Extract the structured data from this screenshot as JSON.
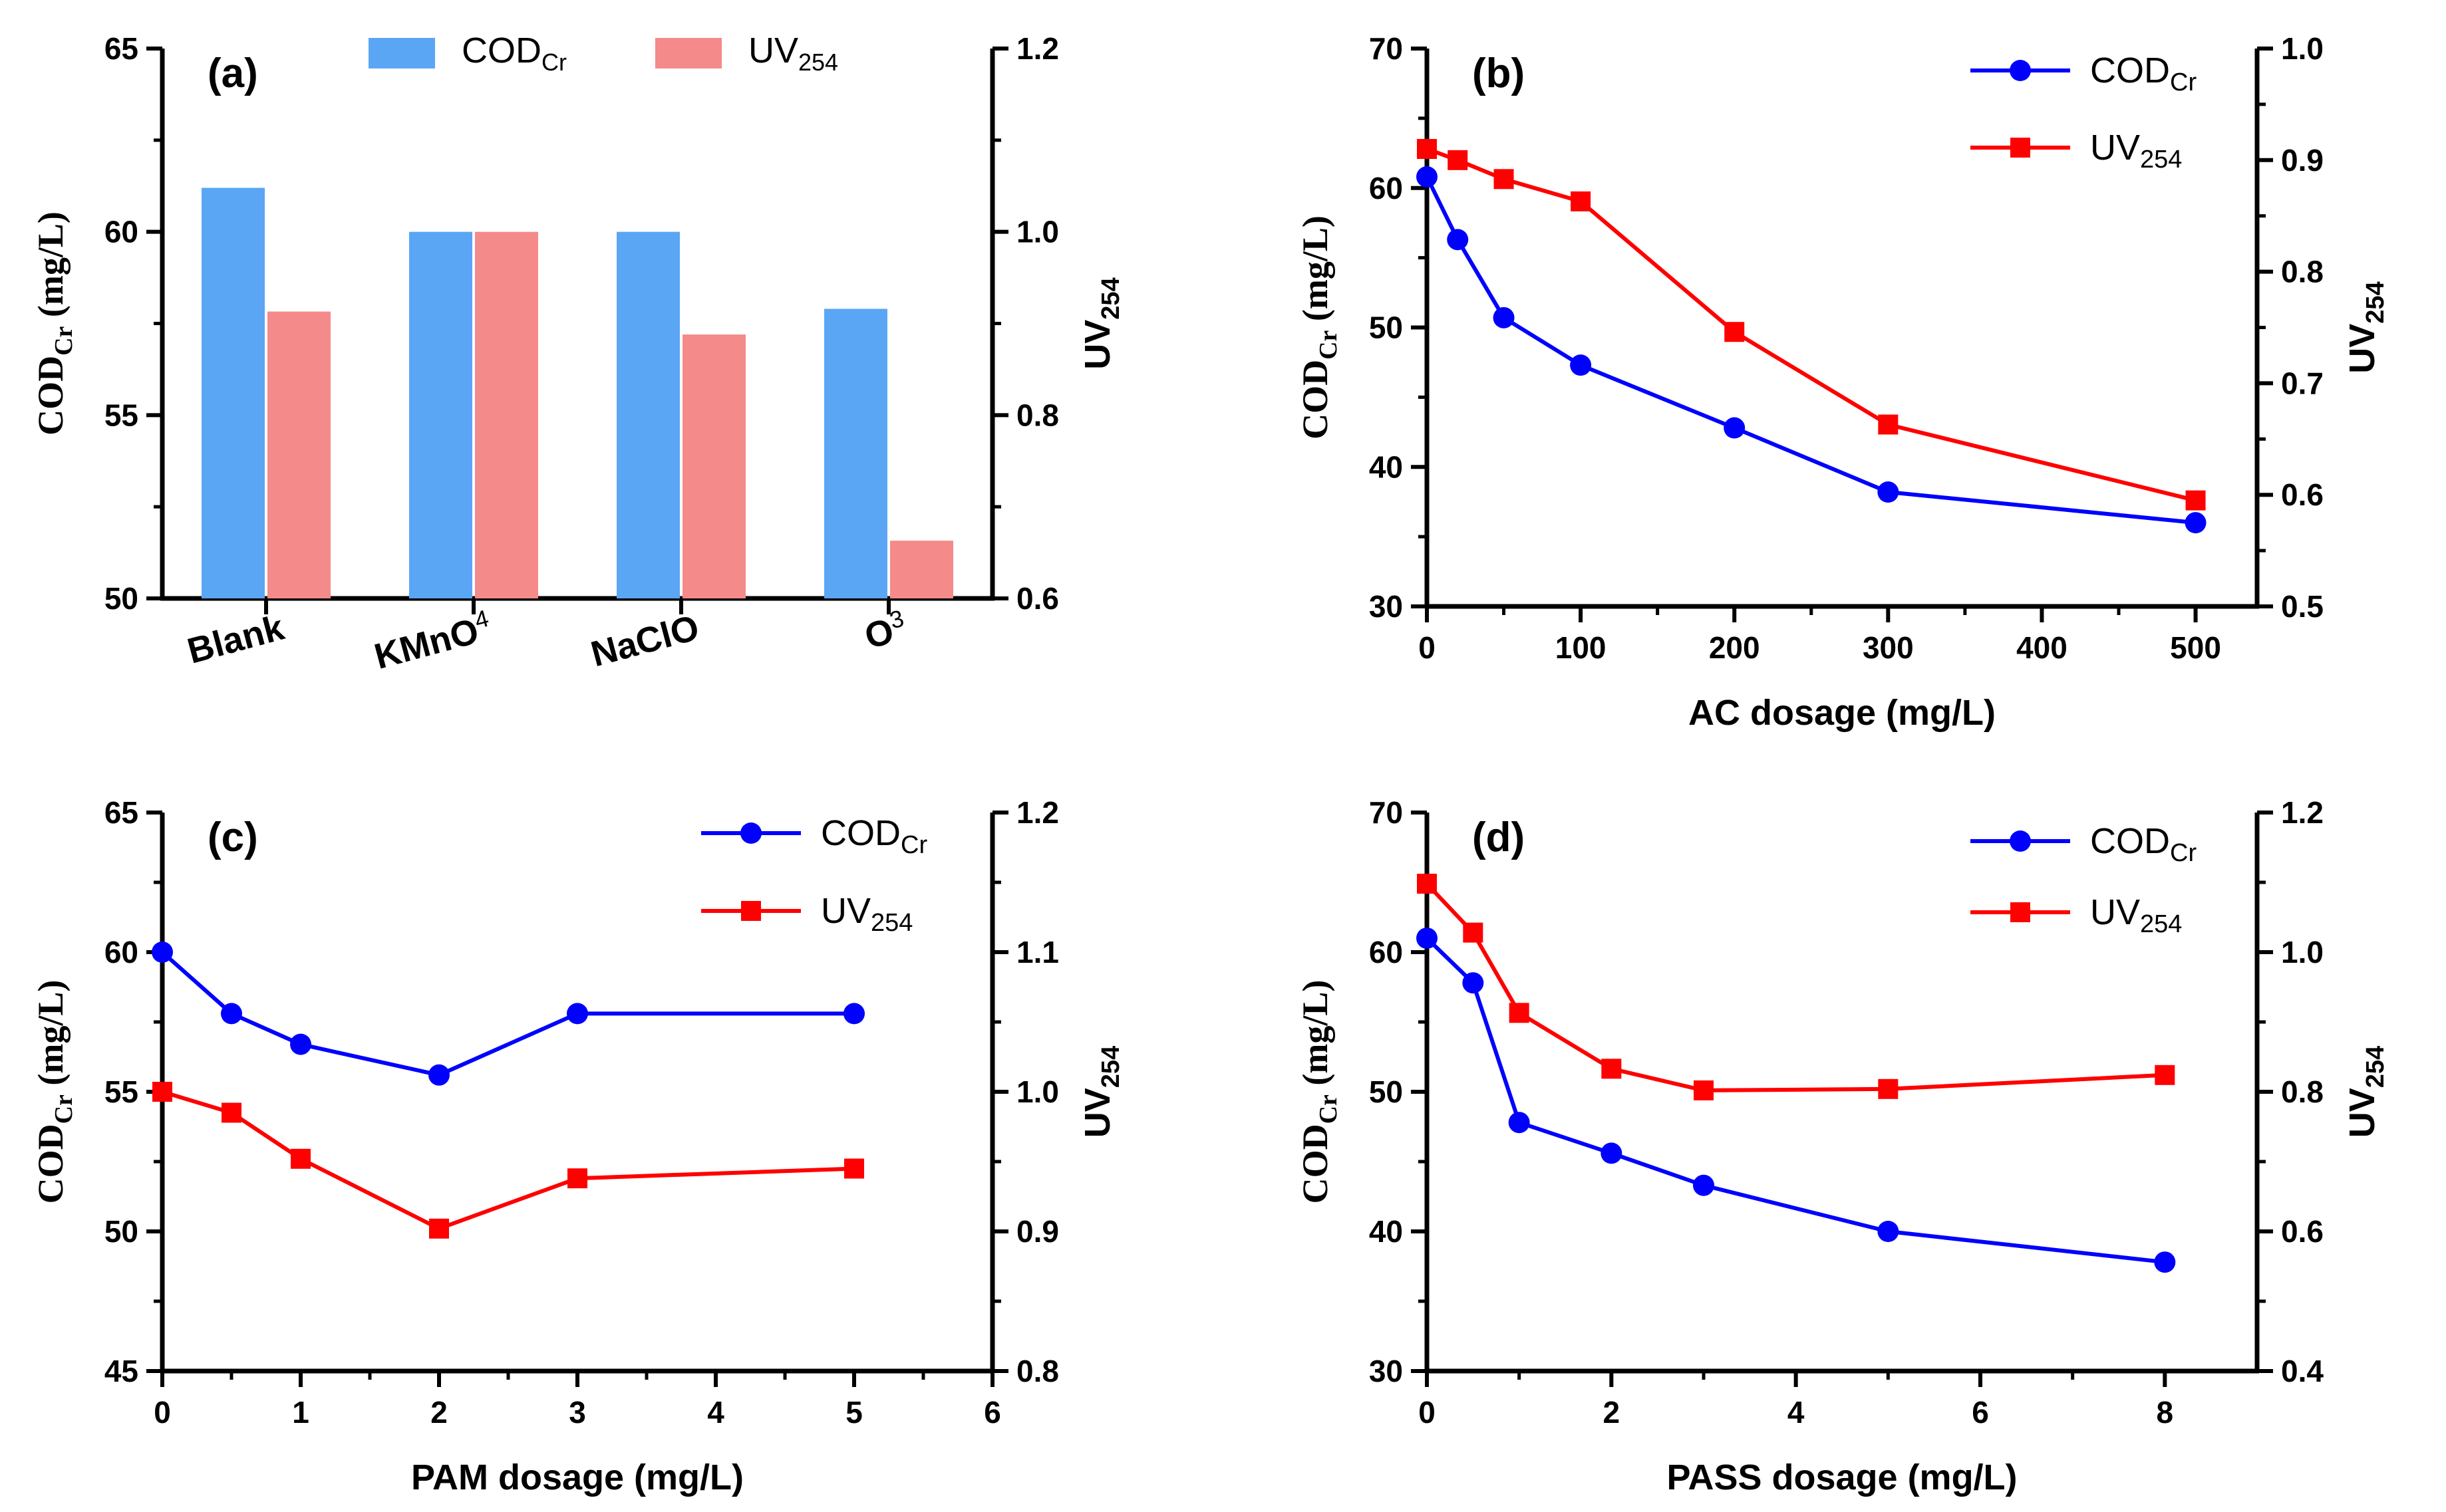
{
  "chart_data": [
    {
      "panel": "(a)",
      "type": "bar",
      "categories": [
        "Blank",
        "KMnO4",
        "NaClO",
        "O3"
      ],
      "category_labels": [
        {
          "base": "Blank",
          "sup": ""
        },
        {
          "base": "KMnO",
          "sup": "4"
        },
        {
          "base": "NaClO",
          "sup": ""
        },
        {
          "base": "O",
          "sup": "3"
        }
      ],
      "series": [
        {
          "name": "CODCr",
          "axis": "left",
          "color": "#5aa6f5",
          "values": [
            61.2,
            60.0,
            60.0,
            57.9
          ]
        },
        {
          "name": "UV254",
          "axis": "right",
          "color": "#f58a8a",
          "values": [
            0.913,
            1.0,
            0.888,
            0.663
          ]
        }
      ],
      "ylabel": {
        "base": "COD",
        "sub": "Cr",
        "unit": "  (mg/L)"
      },
      "y2label": {
        "base": "UV",
        "sub": "254"
      },
      "ylim": [
        50,
        65
      ],
      "yticks": [
        50,
        55,
        60,
        65
      ],
      "y2lim": [
        0.6,
        1.2
      ],
      "y2ticks": [
        "0.6",
        "0.8",
        "1.0",
        "1.2"
      ],
      "legend": [
        {
          "base": "COD",
          "sub": "Cr"
        },
        {
          "base": "UV",
          "sub": "254"
        }
      ]
    },
    {
      "panel": "(b)",
      "type": "line",
      "x": [
        0,
        20,
        50,
        100,
        200,
        300,
        500
      ],
      "series": [
        {
          "name": "CODCr",
          "axis": "left",
          "color": "#0000ff",
          "marker": "circle",
          "values": [
            60.8,
            56.3,
            50.7,
            47.3,
            42.8,
            38.2,
            36.0
          ]
        },
        {
          "name": "UV254",
          "axis": "right",
          "color": "#ff0000",
          "marker": "square",
          "values": [
            0.91,
            0.9,
            0.883,
            0.863,
            0.746,
            0.663,
            0.595
          ]
        }
      ],
      "xlabel": "AC dosage (mg/L)",
      "xlim": [
        0,
        540
      ],
      "xticks": [
        "0",
        "100",
        "200",
        "300",
        "400",
        "500"
      ],
      "xtick_values": [
        0,
        100,
        200,
        300,
        400,
        500
      ],
      "ylabel": {
        "base": "COD",
        "sub": "Cr",
        "unit": "  (mg/L)"
      },
      "y2label": {
        "base": "UV",
        "sub": "254"
      },
      "ylim": [
        30,
        70
      ],
      "yticks": [
        30,
        40,
        50,
        60,
        70
      ],
      "y2lim": [
        0.5,
        1.0
      ],
      "y2ticks": [
        "0.5",
        "0.6",
        "0.7",
        "0.8",
        "0.9",
        "1.0"
      ],
      "legend": [
        {
          "base": "COD",
          "sub": "Cr"
        },
        {
          "base": "UV",
          "sub": "254"
        }
      ]
    },
    {
      "panel": "(c)",
      "type": "line",
      "x": [
        0,
        0.5,
        1,
        2,
        3,
        5
      ],
      "series": [
        {
          "name": "CODCr",
          "axis": "left",
          "color": "#0000ff",
          "marker": "circle",
          "values": [
            60.0,
            57.8,
            56.7,
            55.6,
            57.8,
            57.8
          ]
        },
        {
          "name": "UV254",
          "axis": "right",
          "color": "#ff0000",
          "marker": "square",
          "values": [
            1.0,
            0.985,
            0.952,
            0.902,
            0.938,
            0.945
          ]
        }
      ],
      "xlabel": "PAM dosage  (mg/L)",
      "xlim": [
        0,
        6
      ],
      "xticks": [
        "0",
        "1",
        "2",
        "3",
        "4",
        "5",
        "6"
      ],
      "xtick_values": [
        0,
        1,
        2,
        3,
        4,
        5,
        6
      ],
      "ylabel": {
        "base": "COD",
        "sub": "Cr",
        "unit": "  (mg/L)"
      },
      "y2label": {
        "base": "UV",
        "sub": "254"
      },
      "ylim": [
        45,
        65
      ],
      "yticks": [
        45,
        50,
        55,
        60,
        65
      ],
      "y2lim": [
        0.8,
        1.2
      ],
      "y2ticks": [
        "0.8",
        "0.9",
        "1.0",
        "1.1",
        "1.2"
      ],
      "legend": [
        {
          "base": "COD",
          "sub": "Cr"
        },
        {
          "base": "UV",
          "sub": "254"
        }
      ]
    },
    {
      "panel": "(d)",
      "type": "line",
      "x": [
        0,
        0.5,
        1,
        2,
        3,
        5,
        8
      ],
      "series": [
        {
          "name": "CODCr",
          "axis": "left",
          "color": "#0000ff",
          "marker": "circle",
          "values": [
            61.0,
            57.8,
            47.8,
            45.6,
            43.3,
            40.0,
            37.8
          ]
        },
        {
          "name": "UV254",
          "axis": "right",
          "color": "#ff0000",
          "marker": "square",
          "values": [
            1.098,
            1.028,
            0.913,
            0.833,
            0.802,
            0.804,
            0.824
          ]
        }
      ],
      "xlabel": "PASS dosage  (mg/L)",
      "xlim": [
        0,
        9
      ],
      "xticks": [
        "0",
        "2",
        "4",
        "6",
        "8"
      ],
      "xtick_values": [
        0,
        2,
        4,
        6,
        8
      ],
      "ylabel": {
        "base": "COD",
        "sub": "Cr",
        "unit": "  (mg/L)"
      },
      "y2label": {
        "base": "UV",
        "sub": "254"
      },
      "ylim": [
        30,
        70
      ],
      "yticks": [
        30,
        40,
        50,
        60,
        70
      ],
      "y2lim": [
        0.4,
        1.2
      ],
      "y2ticks": [
        "0.4",
        "0.6",
        "0.8",
        "1.0",
        "1.2"
      ],
      "legend": [
        {
          "base": "COD",
          "sub": "Cr"
        },
        {
          "base": "UV",
          "sub": "254"
        }
      ]
    }
  ]
}
